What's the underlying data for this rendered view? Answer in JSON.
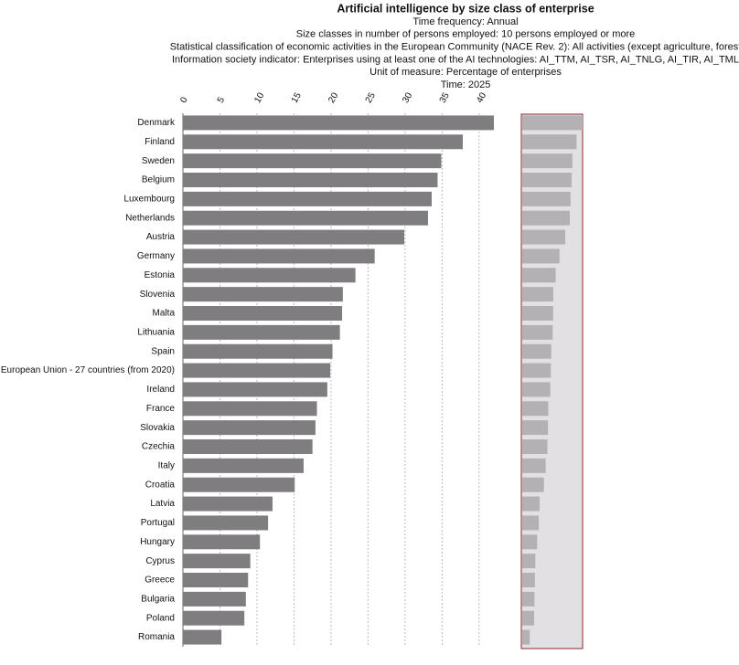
{
  "chart_data": {
    "type": "bar",
    "orientation": "horizontal",
    "title": "Artificial intelligence by size class of enterprise",
    "subtitles": [
      "Time frequency:  Annual",
      "Size classes in number of persons employed:  10 persons employed or more",
      "Statistical classification of economic activities in the European Community (NACE Rev. 2):  All activities (except agriculture, forestry ar",
      "Information society indicator:  Enterprises using at least one of the AI technologies: AI_TTM, AI_TSR, AI_TNLG, AI_TIR, AI_TML, AI_",
      "Unit of measure:  Percentage of enterprises",
      "Time:  2025"
    ],
    "categories": [
      "Denmark",
      "Finland",
      "Sweden",
      "Belgium",
      "Luxembourg",
      "Netherlands",
      "Austria",
      "Germany",
      "Estonia",
      "Slovenia",
      "Malta",
      "Lithuania",
      "Spain",
      "European Union - 27 countries (from 2020)",
      "Ireland",
      "France",
      "Slovakia",
      "Czechia",
      "Italy",
      "Croatia",
      "Latvia",
      "Portugal",
      "Hungary",
      "Cyprus",
      "Greece",
      "Bulgaria",
      "Poland",
      "Romania"
    ],
    "values": [
      42.0,
      37.8,
      34.9,
      34.4,
      33.6,
      33.1,
      29.9,
      25.9,
      23.3,
      21.6,
      21.5,
      21.2,
      20.2,
      19.9,
      19.5,
      18.1,
      17.9,
      17.5,
      16.3,
      15.1,
      12.1,
      11.5,
      10.4,
      9.1,
      8.8,
      8.5,
      8.3,
      5.2
    ],
    "color": "#7f7d80",
    "overview_color": "#b3b1b4",
    "xlim": [
      0,
      42
    ],
    "xticks": [
      0,
      5,
      10,
      15,
      20,
      25,
      30,
      35,
      40
    ],
    "grid": true
  }
}
